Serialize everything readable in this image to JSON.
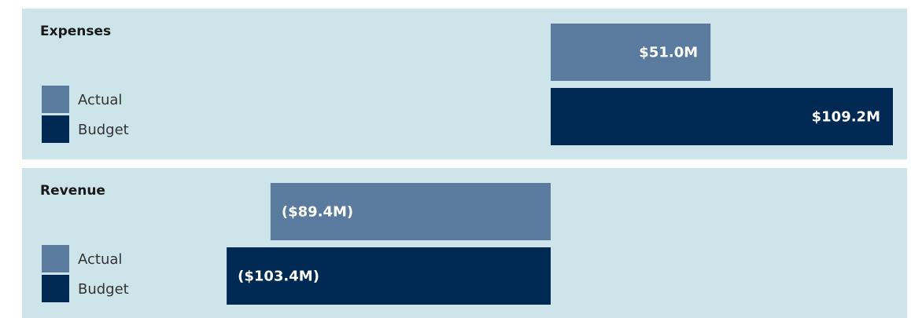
{
  "chart_data": [
    {
      "type": "bar",
      "title": "Expenses",
      "categories": [
        "Actual",
        "Budget"
      ],
      "values": [
        51.0,
        109.2
      ],
      "value_labels": [
        "$51.0M",
        "$109.2M"
      ],
      "colors": [
        "#5a7a9e",
        "#002a54"
      ]
    },
    {
      "type": "bar",
      "title": "Revenue",
      "categories": [
        "Actual",
        "Budget"
      ],
      "values": [
        -89.4,
        -103.4
      ],
      "value_labels": [
        "($89.4M)",
        "($103.4M)"
      ],
      "colors": [
        "#5a7a9e",
        "#002a54"
      ]
    }
  ]
}
